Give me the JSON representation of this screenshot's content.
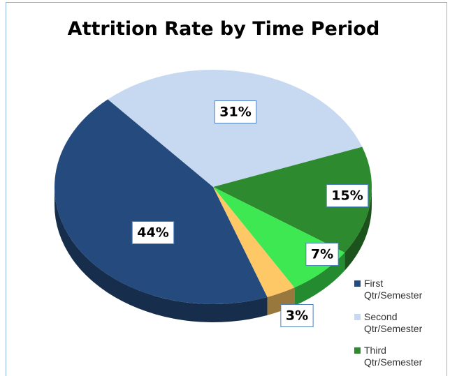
{
  "chart_data": {
    "type": "pie",
    "title": "Attrition Rate by Time Period",
    "categories": [
      "First Qtr/Semester",
      "Second Qtr/Semester",
      "Third Qtr/Semester",
      null,
      null
    ],
    "values": [
      44,
      31,
      15,
      7,
      3
    ],
    "value_labels": [
      "44%",
      "31%",
      "15%",
      "7%",
      "3%"
    ],
    "colors": [
      "#254b7e",
      "#c6d9f1",
      "#2e8a2e",
      "#3ee852",
      "#ffc866"
    ]
  }
}
